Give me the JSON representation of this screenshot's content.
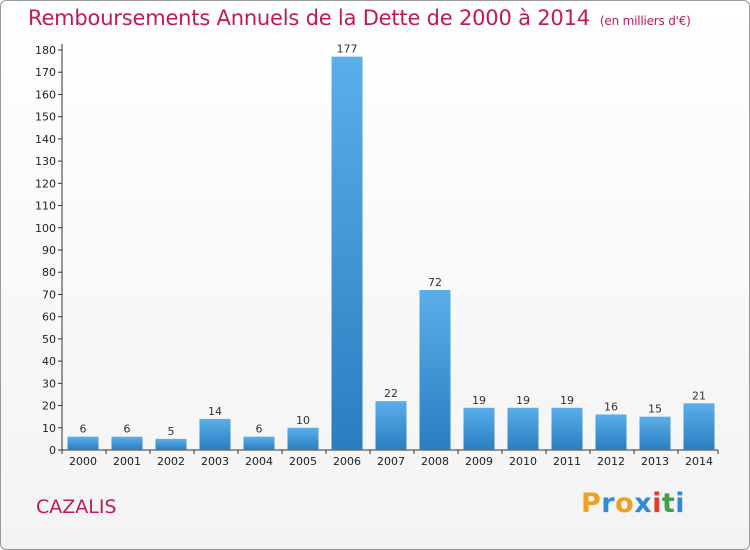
{
  "header": {
    "title": "Remboursements Annuels de la Dette de 2000 à 2014",
    "subtitle": "(en milliers d'€)"
  },
  "footer": {
    "commune": "CAZALIS",
    "logo_letters": [
      "P",
      "r",
      "o",
      "x",
      "i",
      "t",
      "i"
    ],
    "logo_colors": [
      "#f0a020",
      "#2e8bd6",
      "#f0a020",
      "#2e8bd6",
      "#e53935",
      "#43a047",
      "#2e8bd6"
    ]
  },
  "colors": {
    "bar_light": "#5aaeea",
    "bar_dark": "#2a7ec0",
    "title": "#c2185b"
  },
  "chart_data": {
    "type": "bar",
    "categories": [
      "2000",
      "2001",
      "2002",
      "2003",
      "2004",
      "2005",
      "2006",
      "2007",
      "2008",
      "2009",
      "2010",
      "2011",
      "2012",
      "2013",
      "2014"
    ],
    "values": [
      6,
      6,
      5,
      14,
      6,
      10,
      177,
      22,
      72,
      19,
      19,
      19,
      16,
      15,
      21
    ],
    "title": "Remboursements Annuels de la Dette de 2000 à 2014",
    "subtitle": "(en milliers d'€)",
    "ylim": [
      0,
      180
    ],
    "yticks": [
      0,
      10,
      20,
      30,
      40,
      50,
      60,
      70,
      80,
      90,
      100,
      110,
      120,
      130,
      140,
      150,
      160,
      170,
      180
    ],
    "grid": false,
    "data_labels": true
  }
}
